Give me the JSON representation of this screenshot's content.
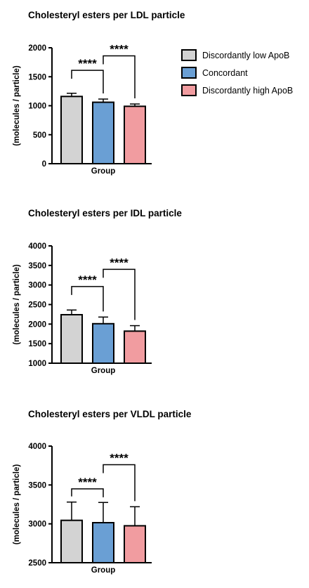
{
  "colors": {
    "discordantly_low": "#d3d3d3",
    "concordant": "#6a9fd4",
    "discordantly_high": "#f19ca0",
    "stroke": "#000000"
  },
  "legend": {
    "placement": "right",
    "items": [
      {
        "label": "Discordantly low ApoB",
        "color": "#d3d3d3"
      },
      {
        "label": "Concordant",
        "color": "#6a9fd4"
      },
      {
        "label": "Discordantly high ApoB",
        "color": "#f19ca0"
      }
    ]
  },
  "chart_data": [
    {
      "type": "bar",
      "title": "Cholesteryl esters per LDL particle",
      "xlabel": "Group",
      "ylabel": "(molecules / particle)",
      "ylim": [
        0,
        2000
      ],
      "yticks": [
        0,
        500,
        1000,
        1500,
        2000
      ],
      "categories": [
        "Discordantly low ApoB",
        "Concordant",
        "Discordantly high ApoB"
      ],
      "values": [
        1160,
        1060,
        990
      ],
      "errors": [
        55,
        55,
        40
      ],
      "significance": [
        {
          "from": 0,
          "to": 1,
          "label": "****",
          "level": 1610
        },
        {
          "from": 1,
          "to": 2,
          "label": "****",
          "level": 1860
        }
      ]
    },
    {
      "type": "bar",
      "title": "Cholesteryl esters per IDL particle",
      "xlabel": "Group",
      "ylabel": "(molecules / particle)",
      "ylim": [
        1000,
        4000
      ],
      "yticks": [
        1000,
        1500,
        2000,
        2500,
        3000,
        3500,
        4000
      ],
      "categories": [
        "Discordantly low ApoB",
        "Concordant",
        "Discordantly high ApoB"
      ],
      "values": [
        2240,
        2010,
        1820
      ],
      "errors": [
        120,
        170,
        140
      ],
      "significance": [
        {
          "from": 0,
          "to": 1,
          "label": "****",
          "level": 2960
        },
        {
          "from": 1,
          "to": 2,
          "label": "****",
          "level": 3400
        }
      ]
    },
    {
      "type": "bar",
      "title": "Cholesteryl esters per VLDL particle",
      "xlabel": "Group",
      "ylabel": "(molecules / particle)",
      "ylim": [
        2500,
        4000
      ],
      "yticks": [
        2500,
        3000,
        3500,
        4000
      ],
      "categories": [
        "Discordantly low ApoB",
        "Concordant",
        "Discordantly high ApoB"
      ],
      "values": [
        3045,
        3015,
        2975
      ],
      "errors": [
        235,
        260,
        245
      ],
      "significance": [
        {
          "from": 0,
          "to": 1,
          "label": "****",
          "level": 3450
        },
        {
          "from": 1,
          "to": 2,
          "label": "****",
          "level": 3760
        }
      ]
    }
  ]
}
